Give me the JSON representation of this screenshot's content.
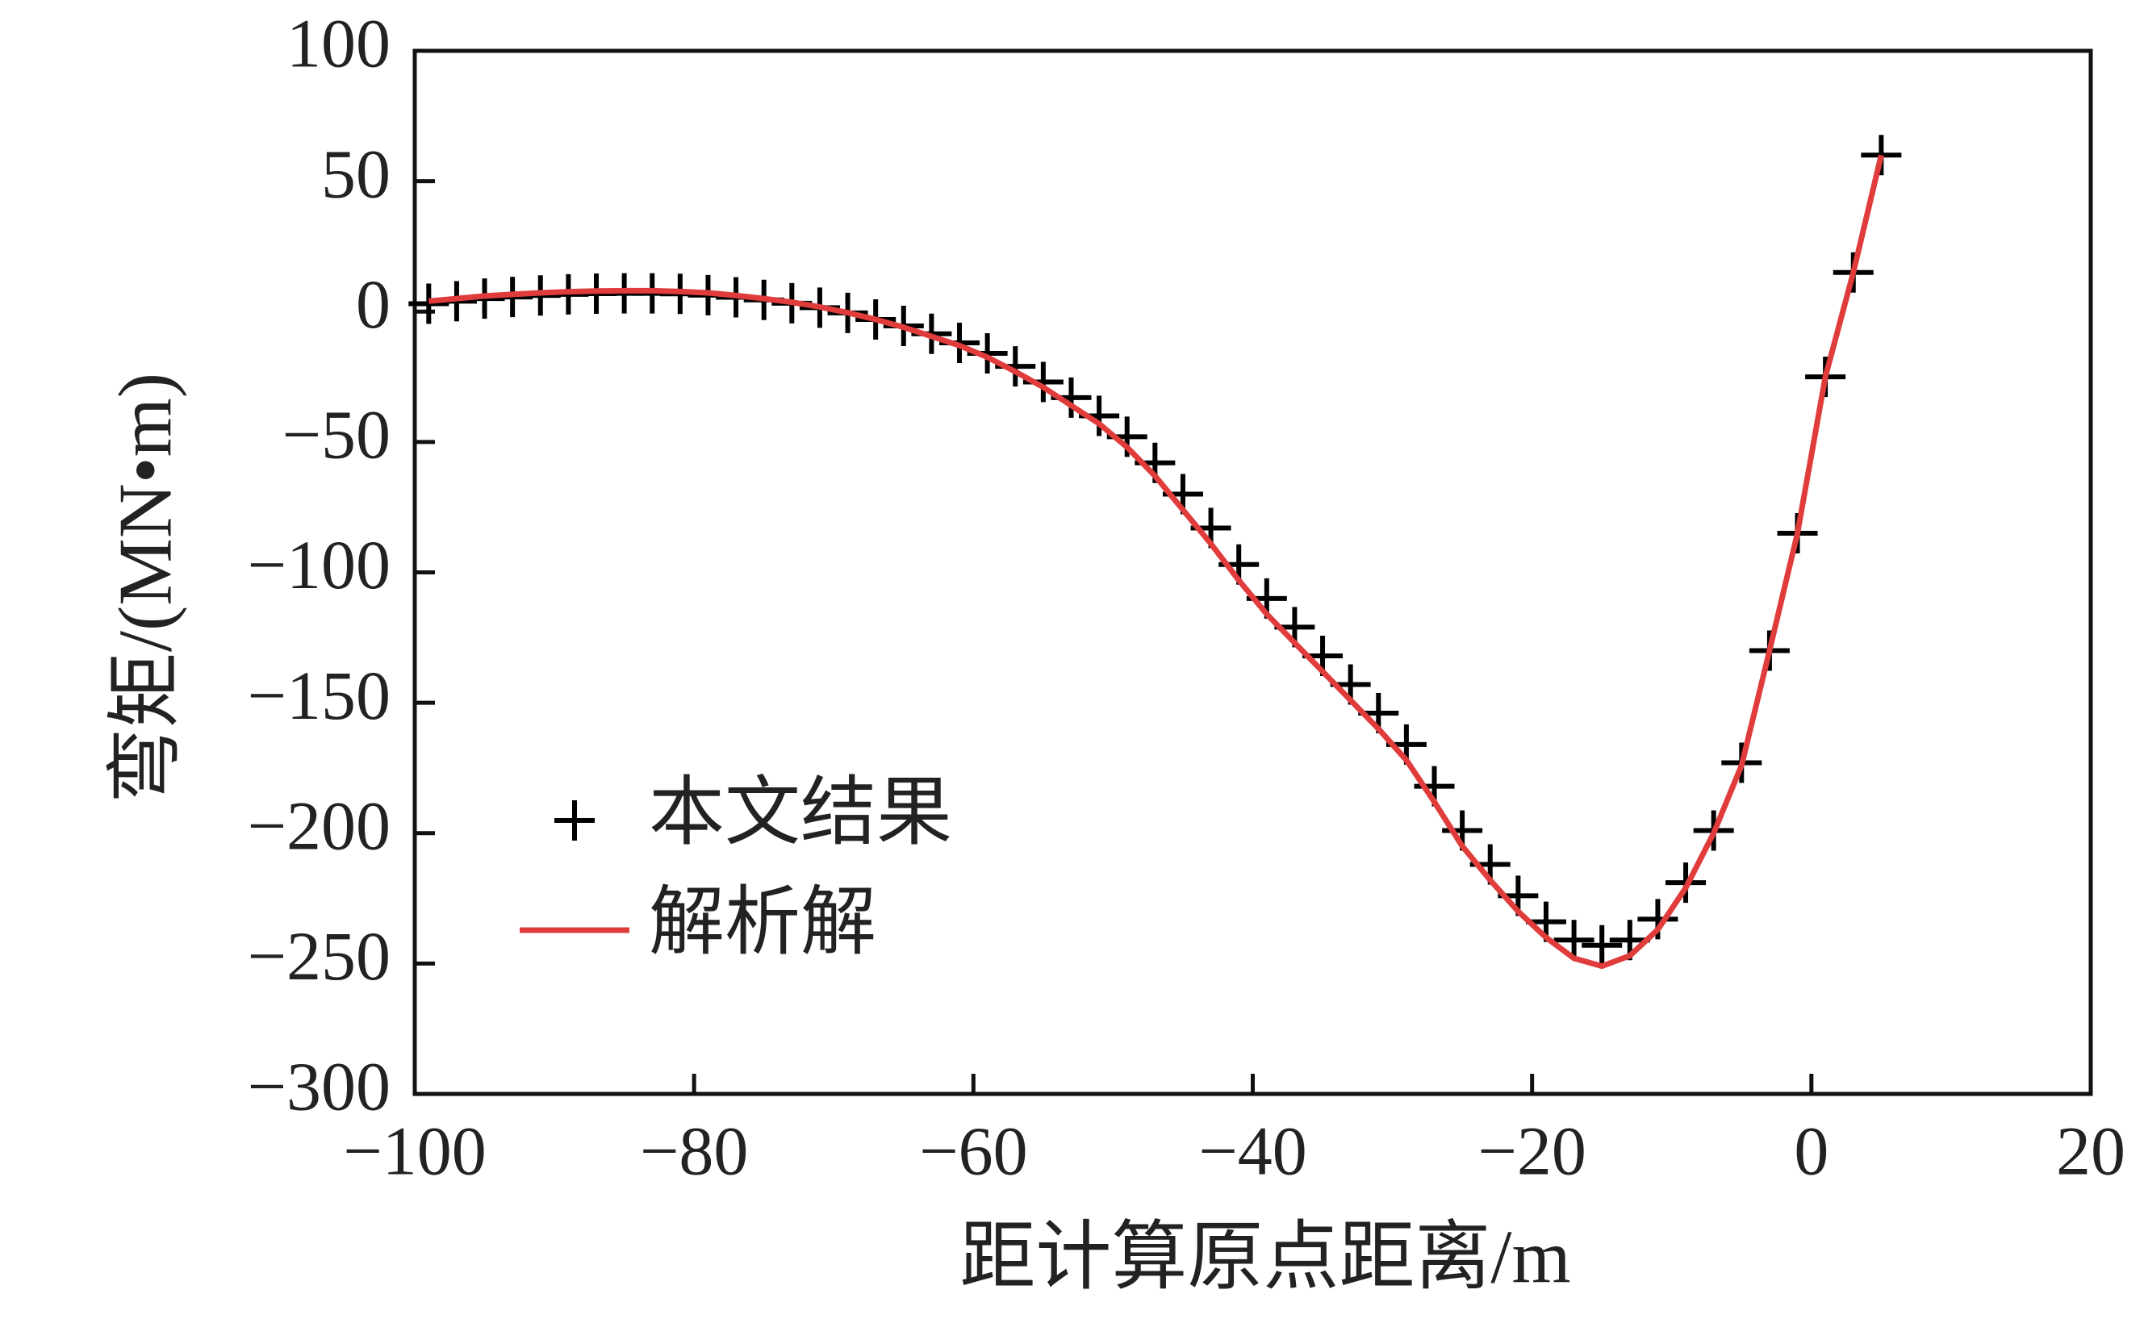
{
  "chart_data": {
    "type": "line",
    "xlabel": "距计算原点距离/m",
    "ylabel": "弯矩/(MN•m)",
    "x": [
      -99,
      -97,
      -95,
      -93,
      -91,
      -89,
      -87,
      -85,
      -83,
      -81,
      -79,
      -77,
      -75,
      -73,
      -71,
      -69,
      -67,
      -65,
      -63,
      -61,
      -59,
      -57,
      -55,
      -53,
      -51,
      -49,
      -47,
      -45,
      -43,
      -41,
      -39,
      -37,
      -35,
      -33,
      -31,
      -29,
      -27,
      -25,
      -23,
      -21,
      -19,
      -17,
      -15,
      -13,
      -11,
      -9,
      -7,
      -5,
      -3,
      -1,
      1,
      3,
      5
    ],
    "series": [
      {
        "name": "本文结果",
        "kind": "scatter",
        "marker": "+",
        "color": "#000000",
        "values": [
          3,
          4,
          5,
          5.6,
          6.2,
          6.6,
          6.9,
          7,
          7,
          6.8,
          6.3,
          5.5,
          4.5,
          3.2,
          1.5,
          -0.5,
          -3,
          -5.5,
          -8.5,
          -12,
          -16,
          -21,
          -27,
          -33,
          -40,
          -48,
          -58,
          -70,
          -83,
          -97,
          -110,
          -121,
          -132,
          -143,
          -154,
          -166,
          -182,
          -199,
          -212,
          -224,
          -234,
          -241,
          -243,
          -241,
          -233,
          -219,
          -199,
          -173,
          -130,
          -85,
          -25,
          15,
          60
        ]
      },
      {
        "name": "解析解",
        "kind": "line",
        "color": "#e03c3c",
        "values": [
          4,
          5,
          6,
          6.6,
          7.2,
          7.6,
          7.9,
          8,
          8,
          7.7,
          7.2,
          6.2,
          5,
          3.6,
          1.8,
          -0.4,
          -3,
          -6,
          -9.5,
          -13,
          -17.5,
          -23,
          -29,
          -36,
          -43,
          -52,
          -63,
          -76,
          -89,
          -103,
          -116,
          -127,
          -138,
          -149,
          -160,
          -172,
          -188,
          -205,
          -218,
          -230,
          -240,
          -248,
          -251,
          -247,
          -237,
          -221,
          -200,
          -174,
          -130,
          -85,
          -25,
          15,
          60
        ]
      }
    ],
    "xlim": [
      -100,
      20
    ],
    "xticks": [
      {
        "value": -100,
        "label": "−100"
      },
      {
        "value": -80,
        "label": "−80"
      },
      {
        "value": -60,
        "label": "−60"
      },
      {
        "value": -40,
        "label": "−40"
      },
      {
        "value": -20,
        "label": "−20"
      },
      0,
      20
    ],
    "ylim": [
      -300,
      100
    ],
    "yticks": [
      {
        "value": -300,
        "label": "−300"
      },
      {
        "value": -250,
        "label": "−250"
      },
      {
        "value": -200,
        "label": "−200"
      },
      {
        "value": -150,
        "label": "−150"
      },
      {
        "value": -100,
        "label": "−100"
      },
      {
        "value": -50,
        "label": "−50"
      },
      0,
      50,
      100
    ],
    "legend": "lower left"
  }
}
